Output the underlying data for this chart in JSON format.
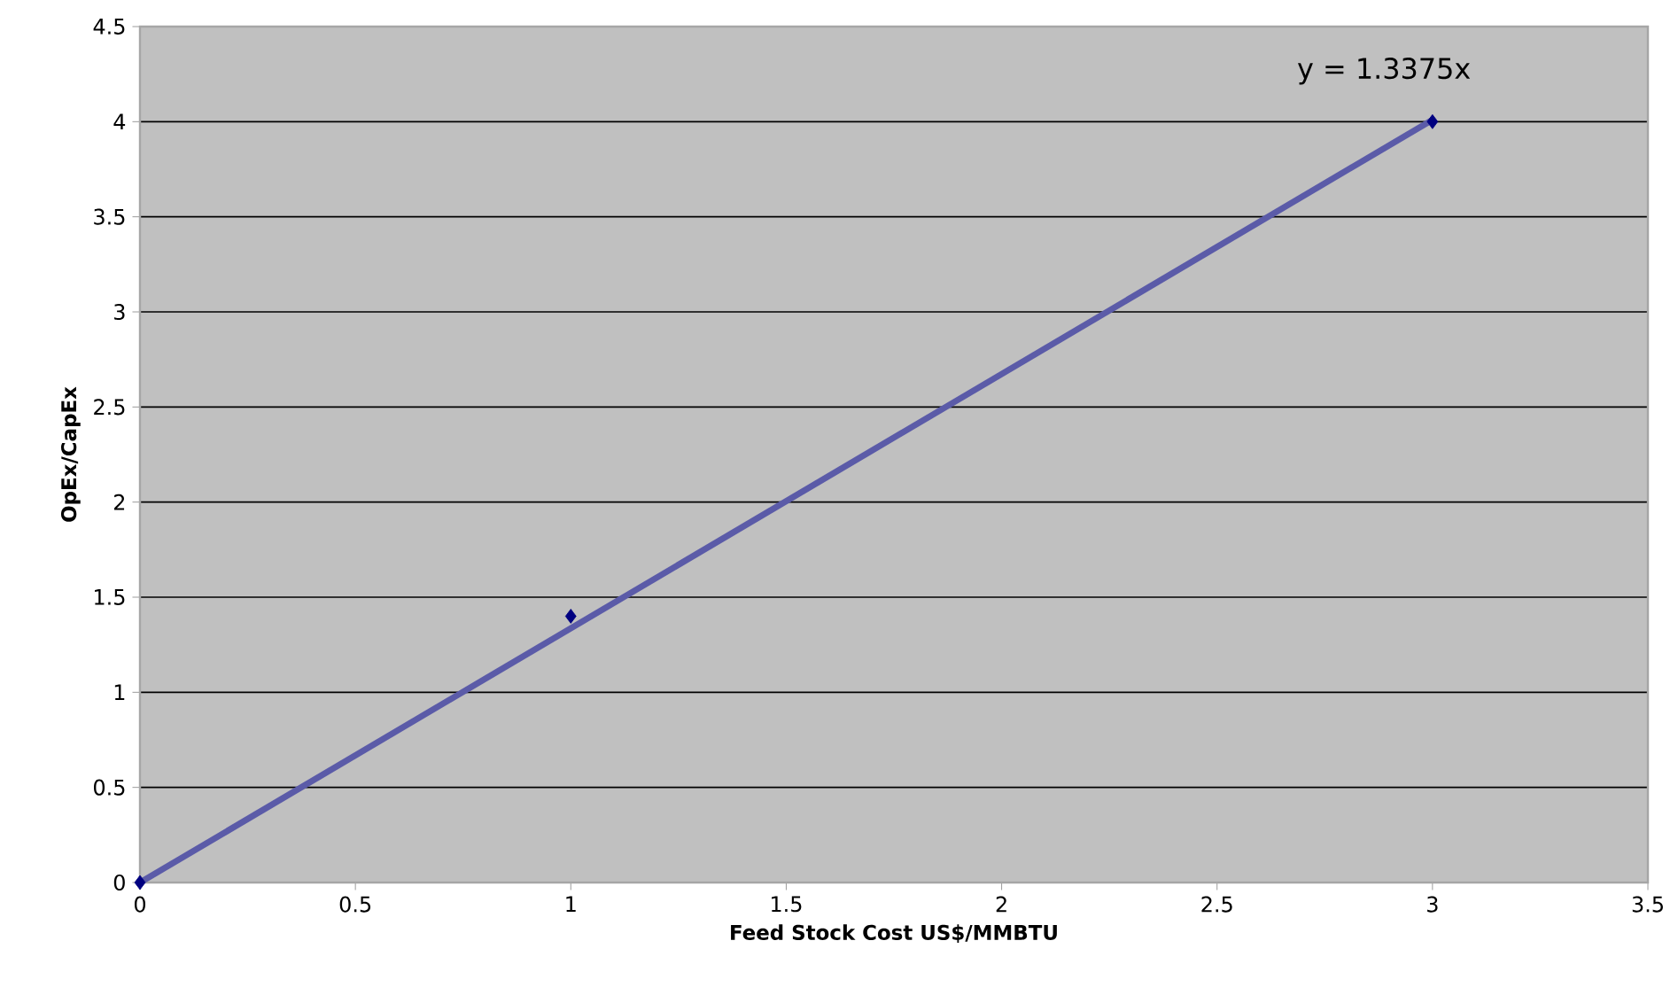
{
  "chart_data": {
    "type": "scatter",
    "xlabel": "Feed Stock Cost US$/MMBTU",
    "ylabel": "OpEx/CapEx",
    "x": [
      0,
      1,
      3
    ],
    "marker": "diamond",
    "grid": "y",
    "series": [
      {
        "color": "#000080",
        "values": [
          0,
          1.4,
          4
        ]
      },
      {
        "type": "line",
        "color": "#5b5ba8",
        "x": [
          0,
          3
        ],
        "values": [
          0,
          4.01
        ],
        "marker": "none"
      }
    ],
    "annotations": [
      "y = 1.3375x"
    ],
    "xlim": [
      0,
      3.5
    ],
    "ylim": [
      0,
      4.5
    ],
    "xticks": [
      0,
      0.5,
      1,
      1.5,
      2,
      2.5,
      3,
      3.5
    ],
    "yticks": [
      0,
      0.5,
      1,
      1.5,
      2,
      2.5,
      3,
      3.5,
      4,
      4.5
    ]
  }
}
